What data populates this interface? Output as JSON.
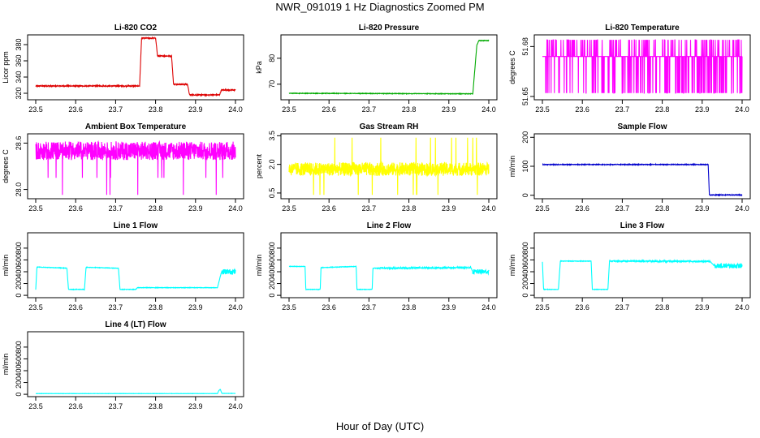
{
  "figure": {
    "title": "NWR_091019  1 Hz Diagnostics Zoomed PM",
    "xlabel": "Hour of Day (UTC)"
  },
  "chart_data": [
    {
      "type": "line",
      "title": "Li-820 CO2",
      "xlabel": "",
      "ylabel": "Licor ppm",
      "color": "#dd0000",
      "xlim": [
        23.5,
        24.0
      ],
      "ylim": [
        312,
        392
      ],
      "xticks": [
        "23.5",
        "23.6",
        "23.7",
        "23.8",
        "23.9",
        "24.0"
      ],
      "yticks": [
        "320",
        "340",
        "360",
        "380"
      ],
      "noise": 0.6,
      "x": [
        23.5,
        23.76,
        23.765,
        23.8,
        23.805,
        23.84,
        23.845,
        23.88,
        23.885,
        23.96,
        23.965,
        24.0
      ],
      "y": [
        329,
        329,
        388,
        388,
        366,
        366,
        331,
        331,
        318,
        318,
        324,
        324
      ]
    },
    {
      "type": "line",
      "title": "Li-820 Pressure",
      "xlabel": "",
      "ylabel": "kPa",
      "color": "#00aa00",
      "xlim": [
        23.5,
        24.0
      ],
      "ylim": [
        64,
        89
      ],
      "xticks": [
        "23.5",
        "23.6",
        "23.7",
        "23.8",
        "23.9",
        "24.0"
      ],
      "yticks": [
        "70",
        "80"
      ],
      "noise": 0.1,
      "x": [
        23.5,
        23.95,
        23.96,
        23.97,
        23.975,
        24.0
      ],
      "y": [
        66.5,
        66.3,
        66.3,
        85,
        86.8,
        86.8
      ]
    },
    {
      "type": "line",
      "title": "Li-820 Temperature",
      "xlabel": "",
      "ylabel": "degrees C",
      "color": "#ff00ff",
      "xlim": [
        23.5,
        24.0
      ],
      "ylim": [
        51.648,
        51.687
      ],
      "xticks": [
        "23.5",
        "23.6",
        "23.7",
        "23.8",
        "23.9",
        "24.0"
      ],
      "yticks": [
        "51.65",
        "51.68"
      ],
      "noise": 0,
      "x": [
        23.5,
        24.0
      ],
      "y": [
        51.674,
        51.674
      ],
      "spike_rate": 0.25,
      "spike_values": [
        51.652,
        51.684
      ]
    },
    {
      "type": "line",
      "title": "Ambient Box Temperature",
      "xlabel": "",
      "ylabel": "degrees C",
      "color": "#ff00ff",
      "xlim": [
        23.5,
        24.0
      ],
      "ylim": [
        27.88,
        28.72
      ],
      "xticks": [
        "23.5",
        "23.6",
        "23.7",
        "23.8",
        "23.9",
        "24.0"
      ],
      "yticks": [
        "28.0",
        "28.6"
      ],
      "noise": 0.12,
      "x": [
        23.5,
        24.0
      ],
      "y": [
        28.5,
        28.5
      ],
      "spike_rate": 0.01,
      "spike_values": [
        27.93,
        28.15
      ]
    },
    {
      "type": "line",
      "title": "Gas Stream RH",
      "xlabel": "",
      "ylabel": "percent",
      "color": "#ffff00",
      "xlim": [
        23.5,
        24.0
      ],
      "ylim": [
        0.2,
        3.6
      ],
      "xticks": [
        "23.5",
        "23.6",
        "23.7",
        "23.8",
        "23.9",
        "24.0"
      ],
      "yticks": [
        "0.5",
        "2.0",
        "3.5"
      ],
      "noise": 0.35,
      "x": [
        23.5,
        24.0
      ],
      "y": [
        1.75,
        1.75
      ],
      "spike_rate": 0.02,
      "spike_values": [
        0.4,
        3.4
      ]
    },
    {
      "type": "line",
      "title": "Sample Flow",
      "xlabel": "",
      "ylabel": "ml/min",
      "color": "#0000cc",
      "xlim": [
        23.5,
        24.0
      ],
      "ylim": [
        -12,
        212
      ],
      "xticks": [
        "23.5",
        "23.6",
        "23.7",
        "23.8",
        "23.9",
        "24.0"
      ],
      "yticks": [
        "0",
        "100",
        "200"
      ],
      "noise": 1.2,
      "x": [
        23.5,
        23.915,
        23.918,
        24.0
      ],
      "y": [
        106,
        106,
        1,
        1
      ]
    },
    {
      "type": "line",
      "title": "Line 1 Flow",
      "xlabel": "",
      "ylabel": "ml/min",
      "color": "#00ffff",
      "xlim": [
        23.5,
        24.0
      ],
      "ylim": [
        -40,
        1060
      ],
      "xticks": [
        "23.5",
        "23.6",
        "23.7",
        "23.8",
        "23.9",
        "24.0"
      ],
      "yticks": [
        "0",
        "200",
        "400",
        "600",
        "800"
      ],
      "noise": 4,
      "x": [
        23.5,
        23.503,
        23.578,
        23.582,
        23.622,
        23.626,
        23.707,
        23.711,
        23.75,
        23.755,
        23.955,
        23.965,
        24.0
      ],
      "y": [
        100,
        480,
        460,
        100,
        100,
        475,
        460,
        100,
        100,
        130,
        130,
        400,
        400
      ],
      "noise_segments": [
        {
          "x": [
            23.965,
            24.0
          ],
          "amp": 45
        }
      ]
    },
    {
      "type": "line",
      "title": "Line 2 Flow",
      "xlabel": "",
      "ylabel": "ml/min",
      "color": "#00ffff",
      "xlim": [
        23.5,
        24.0
      ],
      "ylim": [
        -40,
        1060
      ],
      "xticks": [
        "23.5",
        "23.6",
        "23.7",
        "23.8",
        "23.9",
        "24.0"
      ],
      "yticks": [
        "0",
        "200",
        "400",
        "600",
        "800"
      ],
      "noise": 4,
      "x": [
        23.5,
        23.54,
        23.542,
        23.578,
        23.58,
        23.668,
        23.67,
        23.708,
        23.71,
        23.955,
        23.96,
        24.0
      ],
      "y": [
        490,
        490,
        100,
        100,
        470,
        490,
        100,
        100,
        460,
        470,
        400,
        400
      ],
      "noise_segments": [
        {
          "x": [
            23.72,
            23.955
          ],
          "amp": 12
        },
        {
          "x": [
            23.96,
            24.0
          ],
          "amp": 40
        }
      ]
    },
    {
      "type": "line",
      "title": "Line 3 Flow",
      "xlabel": "",
      "ylabel": "ml/min",
      "color": "#00ffff",
      "xlim": [
        23.5,
        24.0
      ],
      "ylim": [
        -40,
        1060
      ],
      "xticks": [
        "23.5",
        "23.6",
        "23.7",
        "23.8",
        "23.9",
        "24.0"
      ],
      "yticks": [
        "0",
        "200",
        "400",
        "600",
        "800"
      ],
      "noise": 4,
      "x": [
        23.5,
        23.503,
        23.54,
        23.545,
        23.622,
        23.625,
        23.664,
        23.668,
        23.92,
        23.93,
        24.0
      ],
      "y": [
        570,
        100,
        100,
        580,
        580,
        100,
        100,
        580,
        575,
        500,
        500
      ],
      "noise_segments": [
        {
          "x": [
            23.668,
            23.92
          ],
          "amp": 12
        },
        {
          "x": [
            23.93,
            24.0
          ],
          "amp": 40
        }
      ]
    },
    {
      "type": "line",
      "title": "Line 4 (LT) Flow",
      "xlabel": "",
      "ylabel": "ml/min",
      "color": "#00ffff",
      "xlim": [
        23.5,
        24.0
      ],
      "ylim": [
        -40,
        1060
      ],
      "xticks": [
        "23.5",
        "23.6",
        "23.7",
        "23.8",
        "23.9",
        "24.0"
      ],
      "yticks": [
        "0",
        "200",
        "400",
        "600",
        "800"
      ],
      "noise": 2,
      "x": [
        23.5,
        23.955,
        23.958,
        23.962,
        23.966,
        24.0
      ],
      "y": [
        12,
        12,
        60,
        85,
        15,
        15
      ]
    }
  ]
}
